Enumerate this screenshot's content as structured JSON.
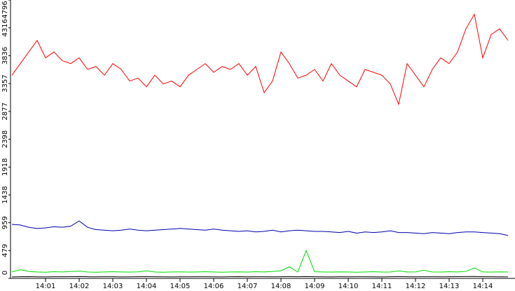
{
  "chart_data": {
    "type": "line",
    "categories": [
      null,
      null,
      null,
      null,
      "14:01",
      null,
      null,
      null,
      "14:02",
      null,
      null,
      null,
      "14:03",
      null,
      null,
      null,
      "14:04",
      null,
      null,
      null,
      "14:05",
      null,
      null,
      null,
      "14:06",
      null,
      null,
      null,
      "14:07",
      null,
      null,
      null,
      "14:08",
      null,
      null,
      null,
      "14:09",
      null,
      null,
      null,
      "14:10",
      null,
      null,
      null,
      "14:11",
      null,
      null,
      null,
      "14:12",
      null,
      null,
      null,
      "14:13",
      null,
      null,
      null,
      "14:14",
      null,
      null,
      null
    ],
    "series": [
      {
        "color": "#ff0000",
        "values": [
          3500,
          3700,
          3900,
          4100,
          3800,
          3900,
          3750,
          3700,
          3800,
          3600,
          3650,
          3500,
          3700,
          3600,
          3400,
          3450,
          3300,
          3500,
          3350,
          3400,
          3300,
          3500,
          3600,
          3700,
          3550,
          3650,
          3600,
          3700,
          3500,
          3650,
          3200,
          3400,
          3900,
          3700,
          3450,
          3500,
          3600,
          3400,
          3700,
          3500,
          3400,
          3300,
          3600,
          3550,
          3500,
          3350,
          3000,
          3700,
          3500,
          3300,
          3600,
          3800,
          3700,
          3900,
          4300,
          4550,
          3800,
          4200,
          4300,
          4100
        ]
      },
      {
        "color": "#0000b0",
        "values": [
          930,
          920,
          880,
          860,
          870,
          890,
          880,
          900,
          990,
          880,
          840,
          830,
          820,
          830,
          850,
          830,
          820,
          830,
          840,
          850,
          860,
          850,
          840,
          830,
          850,
          830,
          820,
          810,
          820,
          800,
          810,
          830,
          800,
          820,
          830,
          820,
          810,
          810,
          800,
          790,
          810,
          780,
          800,
          790,
          800,
          820,
          790,
          790,
          780,
          770,
          790,
          780,
          770,
          790,
          800,
          800,
          790,
          780,
          770,
          740
        ]
      },
      {
        "color": "#00dd00",
        "values": [
          110,
          150,
          120,
          110,
          105,
          115,
          110,
          120,
          125,
          110,
          105,
          110,
          115,
          110,
          108,
          112,
          130,
          110,
          105,
          110,
          112,
          108,
          110,
          115,
          110,
          105,
          110,
          112,
          108,
          115,
          110,
          120,
          130,
          200,
          110,
          480,
          115,
          110,
          108,
          112,
          110,
          105,
          110,
          115,
          108,
          110,
          130,
          110,
          112,
          140,
          110,
          108,
          115,
          110,
          120,
          180,
          110,
          108,
          112,
          110
        ]
      },
      {
        "color": "#000000",
        "values": [
          25,
          28,
          30,
          27,
          26,
          29,
          28,
          30,
          32,
          28,
          27,
          29,
          28,
          26,
          27,
          28,
          30,
          29,
          27,
          26,
          28,
          27,
          29,
          28,
          27,
          26,
          28,
          30,
          27,
          28,
          29,
          27,
          28,
          30,
          29,
          32,
          28,
          27,
          26,
          28,
          27,
          29,
          28,
          27,
          26,
          28,
          30,
          29,
          27,
          28,
          29,
          27,
          28,
          30,
          31,
          33,
          29,
          28,
          27,
          26
        ]
      }
    ],
    "ylim": [
      0,
      4796
    ],
    "yticks": [
      0,
      479,
      959,
      1438,
      1918,
      2398,
      2877,
      3357,
      3836,
      4316,
      4796
    ]
  }
}
